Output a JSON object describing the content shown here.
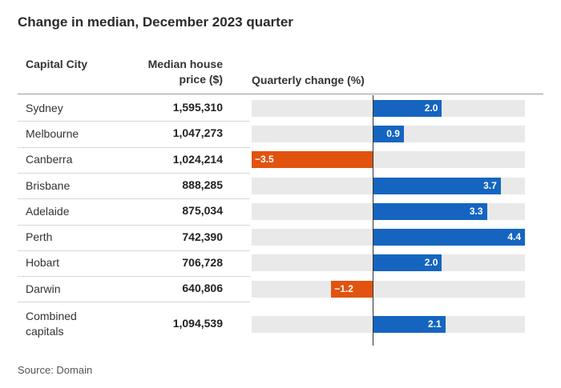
{
  "title": "Change in median, December 2023 quarter",
  "headers": {
    "city": "Capital City",
    "price": "Median house price ($)",
    "change": "Quarterly change (%)"
  },
  "source": "Source: Domain",
  "colors": {
    "positive": "#1565c0",
    "negative": "#e1530f",
    "track": "#e9e9e9"
  },
  "chart_data": {
    "type": "bar",
    "orientation": "horizontal",
    "title": "Change in median, December 2023 quarter",
    "categories": [
      "Sydney",
      "Melbourne",
      "Canberra",
      "Brisbane",
      "Adelaide",
      "Perth",
      "Hobart",
      "Darwin",
      "Combined capitals"
    ],
    "median_house_price": [
      "1,595,310",
      "1,047,273",
      "1,024,214",
      "888,285",
      "875,034",
      "742,390",
      "706,728",
      "640,806",
      "1,094,539"
    ],
    "values": [
      2.0,
      0.9,
      -3.5,
      3.7,
      3.3,
      4.4,
      2.0,
      -1.2,
      2.1
    ],
    "value_labels": [
      "2.0",
      "0.9",
      "−3.5",
      "3.7",
      "3.3",
      "4.4",
      "2.0",
      "−1.2",
      "2.1"
    ],
    "xlim": [
      -3.5,
      4.4
    ],
    "xlabel": "Quarterly change (%)",
    "grid": false,
    "legend": "none"
  }
}
